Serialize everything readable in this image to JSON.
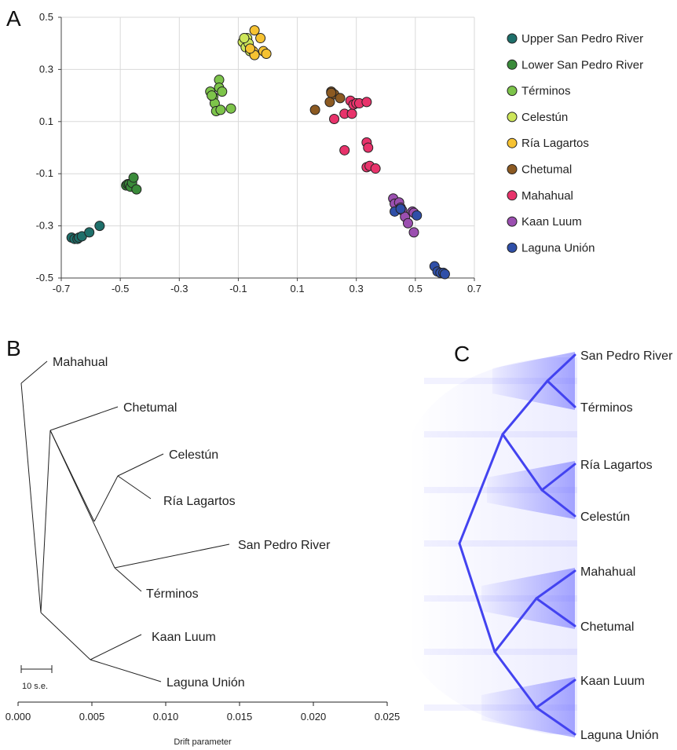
{
  "panels": {
    "a": "A",
    "b": "B",
    "c": "C"
  },
  "chart_data": [
    {
      "type": "scatter",
      "panel": "A",
      "xlim": [
        -0.7,
        0.7
      ],
      "ylim": [
        -0.5,
        0.5
      ],
      "xticks": [
        "-0.7",
        "-0.5",
        "-0.3",
        "-0.1",
        "0.1",
        "0.3",
        "0.5",
        "0.7"
      ],
      "yticks": [
        "0.5",
        "0.3",
        "0.1",
        "-0.1",
        "-0.3",
        "-0.5"
      ],
      "grid": true,
      "legend_position": "right",
      "series": [
        {
          "name": "Upper San Pedro River",
          "color": "#1e6f6a",
          "points": [
            [
              -0.665,
              -0.345
            ],
            [
              -0.655,
              -0.35
            ],
            [
              -0.645,
              -0.35
            ],
            [
              -0.64,
              -0.345
            ],
            [
              -0.63,
              -0.34
            ],
            [
              -0.605,
              -0.325
            ],
            [
              -0.57,
              -0.3
            ]
          ]
        },
        {
          "name": "Lower San Pedro River",
          "color": "#3a8b3a",
          "points": [
            [
              -0.48,
              -0.145
            ],
            [
              -0.475,
              -0.14
            ],
            [
              -0.47,
              -0.14
            ],
            [
              -0.465,
              -0.15
            ],
            [
              -0.46,
              -0.135
            ],
            [
              -0.455,
              -0.115
            ],
            [
              -0.445,
              -0.16
            ]
          ]
        },
        {
          "name": "Términos",
          "color": "#7dc44a",
          "points": [
            [
              -0.165,
              0.26
            ],
            [
              -0.165,
              0.23
            ],
            [
              -0.155,
              0.215
            ],
            [
              -0.195,
              0.215
            ],
            [
              -0.185,
              0.195
            ],
            [
              -0.18,
              0.17
            ],
            [
              -0.175,
              0.14
            ],
            [
              -0.16,
              0.145
            ],
            [
              -0.125,
              0.15
            ],
            [
              -0.19,
              0.2
            ]
          ]
        },
        {
          "name": "Celestún",
          "color": "#cde65a",
          "points": [
            [
              -0.085,
              0.405
            ],
            [
              -0.075,
              0.385
            ],
            [
              -0.07,
              0.42
            ],
            [
              -0.065,
              0.4
            ],
            [
              -0.06,
              0.37
            ],
            [
              -0.08,
              0.42
            ]
          ]
        },
        {
          "name": "Ría Lagartos",
          "color": "#f6c232",
          "points": [
            [
              -0.045,
              0.45
            ],
            [
              -0.025,
              0.42
            ],
            [
              -0.015,
              0.37
            ],
            [
              -0.005,
              0.36
            ],
            [
              -0.05,
              0.37
            ],
            [
              -0.045,
              0.355
            ],
            [
              -0.06,
              0.38
            ]
          ]
        },
        {
          "name": "Chetumal",
          "color": "#8c5a22",
          "points": [
            [
              0.16,
              0.145
            ],
            [
              0.21,
              0.175
            ],
            [
              0.215,
              0.215
            ],
            [
              0.225,
              0.205
            ],
            [
              0.215,
              0.21
            ],
            [
              0.245,
              0.19
            ]
          ]
        },
        {
          "name": "Mahahual",
          "color": "#e8336b",
          "points": [
            [
              0.225,
              0.11
            ],
            [
              0.26,
              0.13
            ],
            [
              0.28,
              0.18
            ],
            [
              0.285,
              0.13
            ],
            [
              0.29,
              0.165
            ],
            [
              0.3,
              0.17
            ],
            [
              0.31,
              0.17
            ],
            [
              0.335,
              0.175
            ],
            [
              0.26,
              -0.01
            ],
            [
              0.335,
              0.02
            ],
            [
              0.34,
              0.0
            ],
            [
              0.335,
              -0.075
            ],
            [
              0.345,
              -0.07
            ],
            [
              0.365,
              -0.08
            ]
          ]
        },
        {
          "name": "Kaan Luum",
          "color": "#9b4fb0",
          "points": [
            [
              0.425,
              -0.195
            ],
            [
              0.43,
              -0.215
            ],
            [
              0.445,
              -0.21
            ],
            [
              0.45,
              -0.23
            ],
            [
              0.455,
              -0.24
            ],
            [
              0.465,
              -0.265
            ],
            [
              0.475,
              -0.29
            ],
            [
              0.49,
              -0.245
            ],
            [
              0.495,
              -0.25
            ],
            [
              0.495,
              -0.325
            ]
          ]
        },
        {
          "name": "Laguna Unión",
          "color": "#2f4fa8",
          "points": [
            [
              0.43,
              -0.245
            ],
            [
              0.45,
              -0.235
            ],
            [
              0.505,
              -0.26
            ],
            [
              0.565,
              -0.455
            ],
            [
              0.575,
              -0.475
            ],
            [
              0.585,
              -0.48
            ],
            [
              0.595,
              -0.48
            ],
            [
              0.6,
              -0.485
            ]
          ]
        }
      ]
    },
    {
      "type": "tree",
      "panel": "B",
      "xlabel": "Drift parameter",
      "xlim": [
        0,
        0.025
      ],
      "xticks": [
        "0.000",
        "0.005",
        "0.010",
        "0.015",
        "0.020",
        "0.025"
      ],
      "scale_bar_label": "10 s.e.",
      "leaves": [
        {
          "name": "Mahahual",
          "drift": 0.0003
        },
        {
          "name": "Chetumal",
          "drift": 0.0066
        },
        {
          "name": "Celestún",
          "drift": 0.0099
        },
        {
          "name": "Ría Lagartos",
          "drift": 0.0089
        },
        {
          "name": "San Pedro River",
          "drift": 0.0148
        },
        {
          "name": "Términos",
          "drift": 0.0088
        },
        {
          "name": "Kaan Luum",
          "drift": 0.0086
        },
        {
          "name": "Laguna Unión",
          "drift": 0.0099
        }
      ]
    },
    {
      "type": "tree",
      "panel": "C",
      "leaves": [
        "San Pedro River",
        "Términos",
        "Ría Lagartos",
        "Celestún",
        "Mahahual",
        "Chetumal",
        "Kaan Luum",
        "Laguna Unión"
      ]
    }
  ]
}
